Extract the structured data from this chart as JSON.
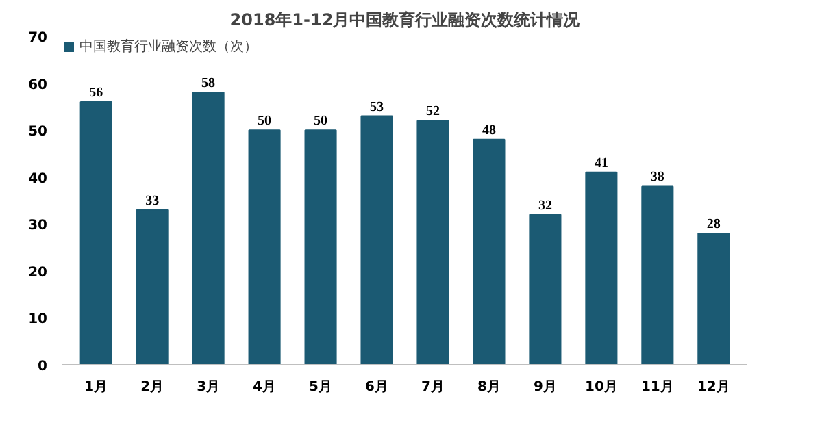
{
  "chart_data": {
    "type": "bar",
    "title": "2018年1-12月中国教育行业融资次数统计情况",
    "categories": [
      "1月",
      "2月",
      "3月",
      "4月",
      "5月",
      "6月",
      "7月",
      "8月",
      "9月",
      "10月",
      "11月",
      "12月"
    ],
    "series": [
      {
        "name": "中国教育行业融资次数（次）",
        "color": "#1b5a73",
        "values": [
          56,
          33,
          58,
          50,
          50,
          53,
          52,
          48,
          32,
          41,
          38,
          28
        ]
      }
    ],
    "ylim": [
      0,
      70
    ],
    "yticks": [
      0,
      10,
      20,
      30,
      40,
      50,
      60,
      70
    ],
    "grid": false,
    "legend": "top left",
    "data_labels": true
  }
}
